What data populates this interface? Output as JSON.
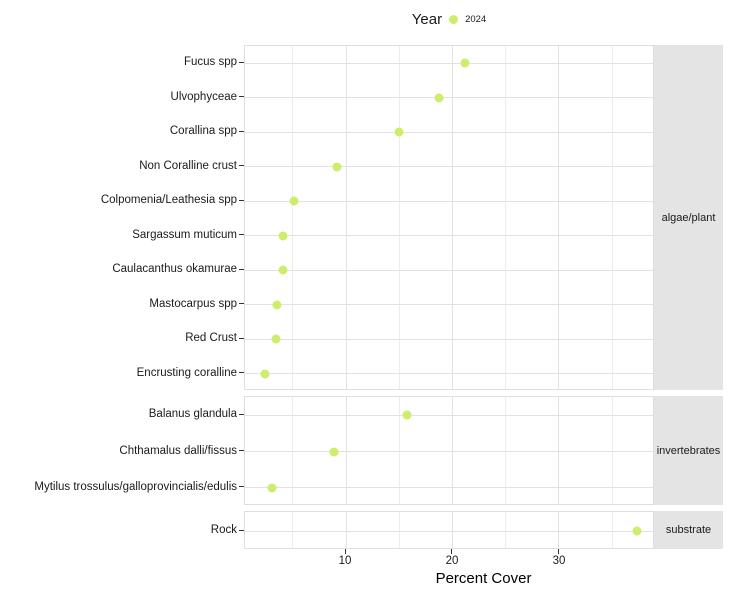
{
  "chart_data": {
    "type": "scatter",
    "title": "",
    "xlabel": "Percent Cover",
    "legend": {
      "title": "Year",
      "position": "top-center",
      "entries": [
        {
          "label": "2024",
          "color": "#cdee6b"
        }
      ]
    },
    "x_axis": {
      "ticks": [
        10,
        20,
        30
      ],
      "major_gridlines": [
        10,
        20,
        30
      ],
      "minor_gridlines": [
        5,
        15,
        25,
        35
      ],
      "range": [
        0.56,
        38.88
      ]
    },
    "facets": [
      {
        "label": "algae/plant",
        "points": [
          {
            "category": "Fucus spp",
            "value": 21.2
          },
          {
            "category": "Ulvophyceae",
            "value": 18.8
          },
          {
            "category": "Corallina spp",
            "value": 15.0
          },
          {
            "category": "Non Coralline crust",
            "value": 9.2
          },
          {
            "category": "Colpomenia/Leathesia spp",
            "value": 5.2
          },
          {
            "category": "Sargassum muticum",
            "value": 4.1
          },
          {
            "category": "Caulacanthus okamurae",
            "value": 4.1
          },
          {
            "category": "Mastocarpus spp",
            "value": 3.6
          },
          {
            "category": "Red Crust",
            "value": 3.5
          },
          {
            "category": "Encrusting coralline",
            "value": 2.4
          }
        ]
      },
      {
        "label": "invertebrates",
        "points": [
          {
            "category": "Balanus glandula",
            "value": 15.8
          },
          {
            "category": "Chthamalus dalli/fissus",
            "value": 8.9
          },
          {
            "category": "Mytilus trossulus/galloprovincialis/edulis",
            "value": 3.1
          }
        ]
      },
      {
        "label": "substrate",
        "points": [
          {
            "category": "Rock",
            "value": 37.4
          }
        ]
      }
    ],
    "colors": {
      "point": "#cdee6b",
      "strip_bg": "#e4e4e4",
      "grid_major": "#e2e2e2",
      "grid_minor": "#ececec",
      "panel_border": "#dedede",
      "tick": "#333333",
      "text": "#1a1a1a"
    }
  }
}
